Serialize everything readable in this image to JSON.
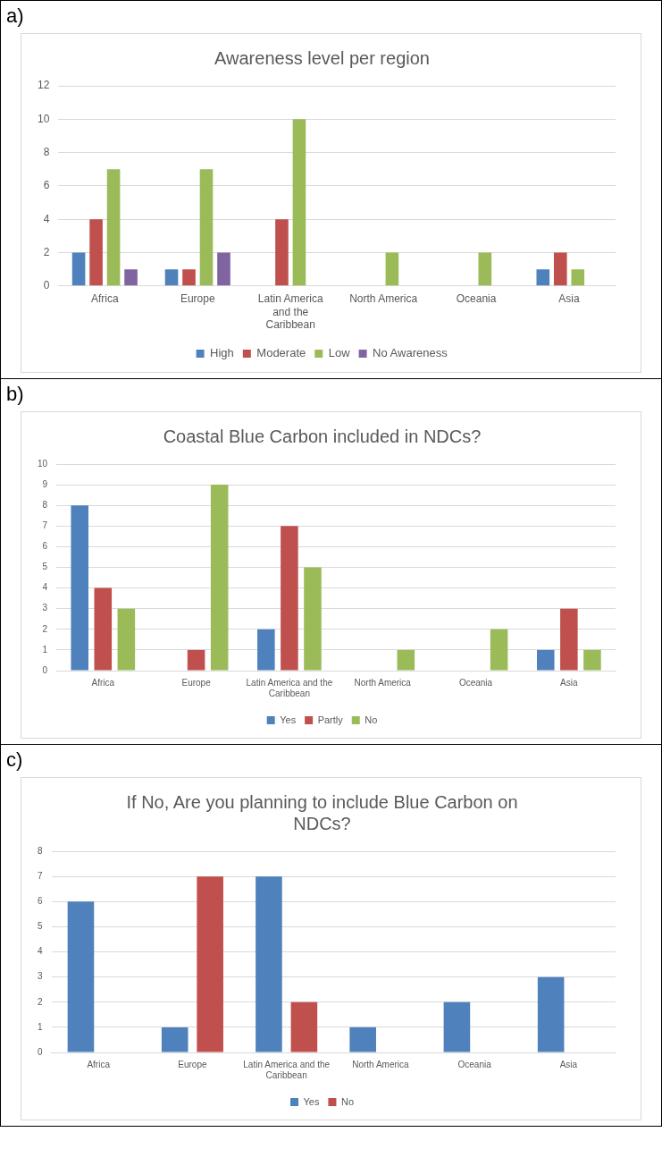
{
  "chart_data": [
    {
      "type": "bar",
      "title": "Awareness level per region",
      "annotations": [
        "a)"
      ],
      "categories": [
        "Africa",
        "Europe",
        "Latin America and the Caribbean",
        "North America",
        "Oceania",
        "Asia"
      ],
      "series": [
        {
          "name": "High",
          "color": "#4f81bd",
          "values": [
            2,
            1,
            null,
            null,
            null,
            1
          ]
        },
        {
          "name": "Moderate",
          "color": "#c0504d",
          "values": [
            4,
            1,
            4,
            null,
            null,
            2
          ]
        },
        {
          "name": "Low",
          "color": "#9bbb59",
          "values": [
            7,
            7,
            10,
            2,
            2,
            1
          ]
        },
        {
          "name": "No Awareness",
          "color": "#8064a2",
          "values": [
            1,
            2,
            null,
            null,
            null,
            null
          ]
        }
      ],
      "ylim": [
        0,
        12
      ],
      "yticks": [
        0,
        2,
        4,
        6,
        8,
        10,
        12
      ],
      "grid": "y",
      "legend": "bottom"
    },
    {
      "type": "bar",
      "title": "Coastal Blue Carbon included in NDCs?",
      "annotations": [
        "b)"
      ],
      "categories": [
        "Africa",
        "Europe",
        "Latin America and the Caribbean",
        "North America",
        "Oceania",
        "Asia"
      ],
      "series": [
        {
          "name": "Yes",
          "color": "#4f81bd",
          "values": [
            8,
            null,
            2,
            null,
            null,
            1
          ]
        },
        {
          "name": "Partly",
          "color": "#c0504d",
          "values": [
            4,
            1,
            7,
            null,
            null,
            3
          ]
        },
        {
          "name": "No",
          "color": "#9bbb59",
          "values": [
            3,
            9,
            5,
            1,
            2,
            1
          ]
        }
      ],
      "ylim": [
        0,
        10
      ],
      "yticks": [
        0,
        1,
        2,
        3,
        4,
        5,
        6,
        7,
        8,
        9,
        10
      ],
      "grid": "y",
      "legend": "bottom"
    },
    {
      "type": "bar",
      "title": "If No, Are you planning to include Blue Carbon on NDCs?",
      "annotations": [
        "c)"
      ],
      "categories": [
        "Africa",
        "Europe",
        "Latin America and the Caribbean",
        "North America",
        "Oceania",
        "Asia"
      ],
      "series": [
        {
          "name": "Yes",
          "color": "#4f81bd",
          "values": [
            6,
            1,
            7,
            1,
            2,
            3
          ]
        },
        {
          "name": "No",
          "color": "#c0504d",
          "values": [
            null,
            7,
            2,
            null,
            null,
            null
          ]
        }
      ],
      "ylim": [
        0,
        8
      ],
      "yticks": [
        0,
        1,
        2,
        3,
        4,
        5,
        6,
        7,
        8
      ],
      "grid": "y",
      "legend": "bottom"
    }
  ]
}
